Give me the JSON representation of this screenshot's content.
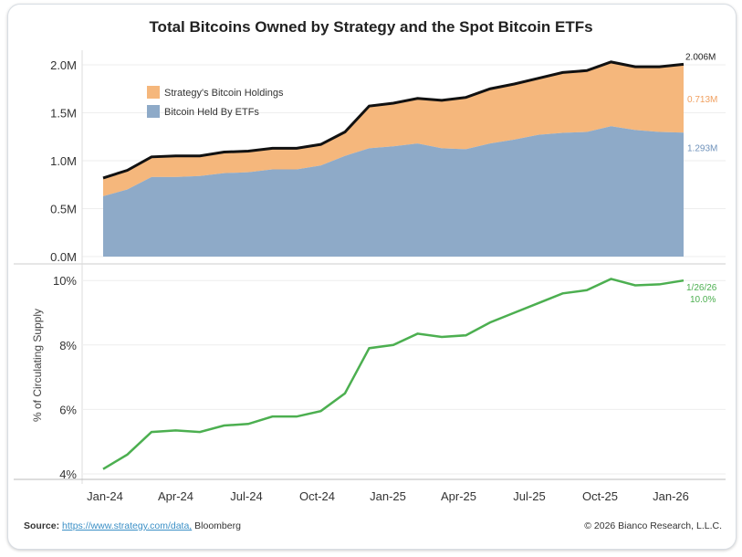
{
  "title": "Total Bitcoins Owned by Strategy and the Spot Bitcoin ETFs",
  "source_label": "Source:",
  "source_link": "https://www.strategy.com/data,",
  "source_rest": "Bloomberg",
  "copyright": "© 2026 Bianco Research, L.L.C.",
  "chart_data": [
    {
      "type": "area",
      "stacked": true,
      "x": [
        "2024-01",
        "2024-02",
        "2024-03",
        "2024-04",
        "2024-05",
        "2024-06",
        "2024-07",
        "2024-08",
        "2024-09",
        "2024-10",
        "2024-11",
        "2024-12",
        "2025-01",
        "2025-02",
        "2025-03",
        "2025-04",
        "2025-05",
        "2025-06",
        "2025-07",
        "2025-08",
        "2025-09",
        "2025-10",
        "2025-11",
        "2025-12",
        "2026-01"
      ],
      "series": [
        {
          "name": "Bitcoin Held By ETFs",
          "color": "#8eaac8",
          "values": [
            0.63,
            0.7,
            0.83,
            0.83,
            0.84,
            0.87,
            0.88,
            0.91,
            0.91,
            0.95,
            1.05,
            1.13,
            1.15,
            1.18,
            1.13,
            1.12,
            1.18,
            1.22,
            1.27,
            1.29,
            1.3,
            1.36,
            1.32,
            1.3,
            1.293
          ]
        },
        {
          "name": "Strategy's Bitcoin Holdings",
          "color": "#f5b77c",
          "values": [
            0.19,
            0.2,
            0.21,
            0.22,
            0.21,
            0.22,
            0.22,
            0.22,
            0.22,
            0.22,
            0.25,
            0.44,
            0.45,
            0.47,
            0.5,
            0.54,
            0.57,
            0.58,
            0.59,
            0.63,
            0.64,
            0.67,
            0.66,
            0.68,
            0.713
          ]
        }
      ],
      "total_color": "#111111",
      "end_labels": {
        "total": "2.006M",
        "strategy": "0.713M",
        "etf": "1.293M"
      },
      "ylim": [
        0,
        2.1
      ],
      "yticks": [
        "0.0M",
        "0.5M",
        "1.0M",
        "1.5M",
        "2.0M"
      ],
      "ytick_values": [
        0,
        0.5,
        1,
        1.5,
        2
      ],
      "legend": "top-left",
      "grid": true
    },
    {
      "type": "line",
      "ylabel": "% of Circulating Supply",
      "color": "#4caf50",
      "values": [
        4.15,
        4.6,
        5.3,
        5.35,
        5.3,
        5.5,
        5.55,
        5.78,
        5.78,
        5.95,
        6.5,
        7.9,
        8.0,
        8.35,
        8.25,
        8.3,
        8.7,
        9.0,
        9.3,
        9.6,
        9.7,
        10.05,
        9.85,
        9.88,
        10.0
      ],
      "end_label_date": "1/26/26",
      "end_label_value": "10.0%",
      "ylim": [
        3.85,
        10.3
      ],
      "yticks": [
        "4%",
        "6%",
        "8%",
        "10%"
      ],
      "ytick_values": [
        4,
        6,
        8,
        10
      ],
      "xticks": [
        "Jan-24",
        "Apr-24",
        "Jul-24",
        "Oct-24",
        "Jan-25",
        "Apr-25",
        "Jul-25",
        "Oct-25",
        "Jan-26"
      ],
      "grid": true
    }
  ]
}
